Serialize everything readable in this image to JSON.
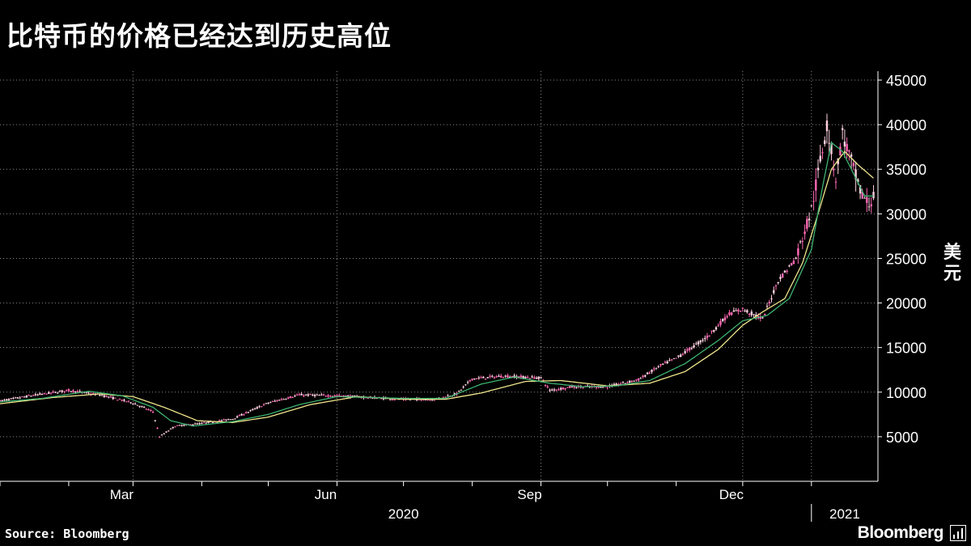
{
  "title": "比特币的价格已经达到历史高位",
  "y_unit_label": "美元",
  "source": "Source: Bloomberg",
  "brand": "Bloomberg",
  "brand_icon": "bar-chart-icon",
  "colors": {
    "background": "#000000",
    "up_candle": "#ff69b4",
    "down_candle": "#ffd1e0",
    "ma_short": "#3cb371",
    "ma_long": "#f0e68c",
    "grid": "#8a8a8a",
    "text": "#ffffff"
  },
  "chart_data": {
    "type": "line",
    "subtype": "candlestick with moving averages",
    "title": "比特币的价格已经达到历史高位",
    "ylabel": "美元",
    "ylim": [
      0,
      46000
    ],
    "yticks": [
      5000,
      10000,
      15000,
      20000,
      25000,
      30000,
      35000,
      40000,
      45000
    ],
    "ytick_labels": [
      "5000",
      "10000",
      "15000",
      "20000",
      "25000",
      "30000",
      "35000",
      "40000",
      "45000"
    ],
    "xlim": [
      "2020-01-01",
      "2021-01-31"
    ],
    "xticks": [
      {
        "date": "2020-03-01",
        "label": "Mar"
      },
      {
        "date": "2020-06-01",
        "label": "Jun"
      },
      {
        "date": "2020-09-01",
        "label": "Sep"
      },
      {
        "date": "2020-12-01",
        "label": "Dec"
      }
    ],
    "year_labels": [
      {
        "date": "2020-07-01",
        "label": "2020"
      },
      {
        "date": "2021-01-16",
        "label": "2021"
      }
    ],
    "grid": true,
    "legend": "none",
    "series": [
      {
        "kind": "price",
        "x": [
          "2020-01-01",
          "2020-01-15",
          "2020-02-01",
          "2020-02-15",
          "2020-03-01",
          "2020-03-10",
          "2020-03-13",
          "2020-03-20",
          "2020-04-01",
          "2020-04-15",
          "2020-05-01",
          "2020-05-15",
          "2020-06-01",
          "2020-06-15",
          "2020-07-01",
          "2020-07-15",
          "2020-07-25",
          "2020-08-01",
          "2020-08-15",
          "2020-09-01",
          "2020-09-05",
          "2020-09-15",
          "2020-10-01",
          "2020-10-15",
          "2020-10-25",
          "2020-11-01",
          "2020-11-15",
          "2020-11-25",
          "2020-12-01",
          "2020-12-10",
          "2020-12-17",
          "2020-12-25",
          "2021-01-01",
          "2021-01-08",
          "2021-01-12",
          "2021-01-15",
          "2021-01-20",
          "2021-01-23",
          "2021-01-27",
          "2021-01-29"
        ],
        "values": [
          9000,
          9600,
          10200,
          9700,
          8800,
          7800,
          5000,
          6200,
          6500,
          7000,
          8800,
          9700,
          9600,
          9400,
          9200,
          9200,
          9800,
          11500,
          11800,
          11600,
          10200,
          10600,
          10600,
          11400,
          13000,
          13800,
          16200,
          18800,
          19300,
          18200,
          22500,
          25000,
          30500,
          40000,
          34000,
          39000,
          35000,
          32500,
          31000,
          32000
        ]
      },
      {
        "kind": "moving_average_short",
        "x": [
          "2020-01-01",
          "2020-01-20",
          "2020-02-10",
          "2020-02-25",
          "2020-03-10",
          "2020-03-18",
          "2020-03-28",
          "2020-04-15",
          "2020-05-01",
          "2020-05-15",
          "2020-06-01",
          "2020-07-01",
          "2020-07-20",
          "2020-08-05",
          "2020-08-20",
          "2020-09-05",
          "2020-09-20",
          "2020-10-05",
          "2020-10-20",
          "2020-11-05",
          "2020-11-20",
          "2020-12-01",
          "2020-12-12",
          "2020-12-22",
          "2021-01-01",
          "2021-01-06",
          "2021-01-10",
          "2021-01-15",
          "2021-01-20",
          "2021-01-25",
          "2021-01-29"
        ],
        "values": [
          8900,
          9300,
          10100,
          9600,
          8300,
          6800,
          6200,
          6700,
          7500,
          8600,
          9500,
          9300,
          9300,
          10900,
          11700,
          11000,
          10600,
          10700,
          11300,
          13200,
          15800,
          18000,
          18600,
          20500,
          26000,
          33000,
          38000,
          37000,
          34500,
          32000,
          32000
        ]
      },
      {
        "kind": "moving_average_long",
        "x": [
          "2020-01-01",
          "2020-01-25",
          "2020-02-15",
          "2020-03-01",
          "2020-03-15",
          "2020-03-30",
          "2020-04-15",
          "2020-05-01",
          "2020-05-20",
          "2020-06-10",
          "2020-07-01",
          "2020-07-20",
          "2020-08-05",
          "2020-08-25",
          "2020-09-10",
          "2020-10-01",
          "2020-10-20",
          "2020-11-05",
          "2020-11-20",
          "2020-12-01",
          "2020-12-10",
          "2020-12-20",
          "2020-12-28",
          "2021-01-04",
          "2021-01-10",
          "2021-01-16",
          "2021-01-22",
          "2021-01-29"
        ],
        "values": [
          8700,
          9400,
          9800,
          9500,
          8300,
          6800,
          6600,
          7200,
          8600,
          9500,
          9200,
          9200,
          9900,
          11200,
          11300,
          10700,
          11000,
          12300,
          14800,
          17500,
          19000,
          20500,
          24500,
          30000,
          35000,
          37000,
          35500,
          34000
        ]
      }
    ]
  }
}
